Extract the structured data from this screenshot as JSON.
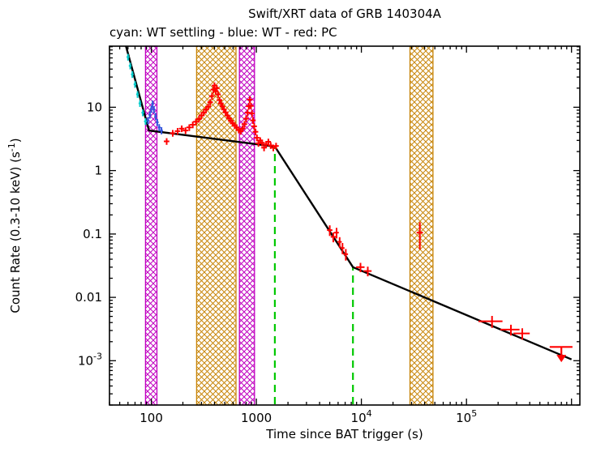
{
  "chart_data": {
    "type": "scatter",
    "title": "Swift/XRT data of GRB 140304A",
    "subtitle": "cyan: WT settling - blue: WT - red: PC",
    "xlabel": "Time since BAT trigger (s)",
    "ylabel_parts": [
      {
        "t": "Count Rate (0.3-10 keV) (s"
      },
      {
        "t": "-1",
        "sup": true
      },
      {
        "t": ")"
      }
    ],
    "xscale": "log",
    "yscale": "log",
    "xlim": [
      40,
      1200000
    ],
    "ylim": [
      0.0002,
      92
    ],
    "grid": false,
    "legend_position": "none",
    "x_ticks": [
      {
        "value": 100,
        "base": "100",
        "exp": ""
      },
      {
        "value": 1000,
        "base": "1000",
        "exp": ""
      },
      {
        "value": 10000,
        "base": "10",
        "exp": "4"
      },
      {
        "value": 100000,
        "base": "10",
        "exp": "5"
      }
    ],
    "y_ticks": [
      {
        "value": 10,
        "base": "10",
        "exp": ""
      },
      {
        "value": 1,
        "base": "1",
        "exp": ""
      },
      {
        "value": 0.1,
        "base": "0.1",
        "exp": ""
      },
      {
        "value": 0.01,
        "base": "0.01",
        "exp": ""
      },
      {
        "value": 0.001,
        "base": "10",
        "exp": "-3"
      }
    ],
    "colors": {
      "wt_settling": "#00CCCC",
      "wt": "#3355DD",
      "pc": "#FF0000",
      "fit": "#000000",
      "break_line": "#00C800",
      "band_magenta": "#C000C0",
      "band_orange": "#C8860B"
    },
    "bands": [
      {
        "x0": 88,
        "x1": 113,
        "color_key": "band_magenta"
      },
      {
        "x0": 270,
        "x1": 640,
        "color_key": "band_orange"
      },
      {
        "x0": 690,
        "x1": 960,
        "color_key": "band_magenta"
      },
      {
        "x0": 29000,
        "x1": 48000,
        "color_key": "band_orange"
      }
    ],
    "break_lines": [
      {
        "x": 1500,
        "y_top": 2.4
      },
      {
        "x": 8300,
        "y_top": 0.03
      }
    ],
    "fit_line": [
      [
        55,
        120
      ],
      [
        95,
        4.3
      ],
      [
        1500,
        2.4
      ],
      [
        8300,
        0.03
      ],
      [
        1000000,
        0.00105
      ]
    ],
    "series": [
      {
        "name": "WT settling",
        "color_key": "wt_settling",
        "xerr_frac": 0.03,
        "yerr_frac": 0.12,
        "points": [
          [
            60,
            62
          ],
          [
            63,
            45
          ],
          [
            66,
            33
          ],
          [
            70,
            23
          ],
          [
            74,
            16
          ],
          [
            78,
            11.5
          ],
          [
            83,
            8.2
          ],
          [
            88,
            6.0
          ]
        ]
      },
      {
        "name": "WT",
        "color_key": "wt",
        "xerr_frac": 0.03,
        "yerr_frac": 0.13,
        "points": [
          [
            93,
            6.2
          ],
          [
            97,
            7.6
          ],
          [
            100,
            9.4
          ],
          [
            103,
            11.3
          ],
          [
            106,
            9.2
          ],
          [
            110,
            7.2
          ],
          [
            114,
            5.8
          ],
          [
            119,
            4.8
          ],
          [
            125,
            4.3
          ]
        ]
      },
      {
        "name": "PC",
        "color_key": "pc",
        "xerr_frac": 0.06,
        "yerr_frac": 0.12,
        "points": [
          [
            140,
            2.9
          ],
          [
            160,
            3.9
          ],
          [
            178,
            4.2
          ],
          [
            195,
            4.6
          ],
          [
            212,
            4.3
          ],
          [
            230,
            4.8
          ],
          [
            248,
            5.3
          ],
          [
            266,
            5.9
          ],
          [
            284,
            6.5
          ],
          [
            300,
            7.4
          ],
          [
            316,
            8.2
          ],
          [
            332,
            9.2
          ],
          [
            348,
            10.2
          ],
          [
            364,
            12
          ],
          [
            378,
            15
          ],
          [
            390,
            19
          ],
          [
            400,
            22
          ],
          [
            410,
            18
          ],
          [
            420,
            20
          ],
          [
            432,
            16
          ],
          [
            446,
            13
          ],
          [
            460,
            11.5
          ],
          [
            476,
            10.3
          ],
          [
            492,
            9.2
          ],
          [
            510,
            8.3
          ],
          [
            530,
            7.4
          ],
          [
            550,
            6.7
          ],
          [
            573,
            6.1
          ],
          [
            597,
            5.6
          ],
          [
            622,
            5.2
          ],
          [
            650,
            4.8
          ],
          [
            680,
            4.4
          ],
          [
            710,
            4.2
          ],
          [
            740,
            4.6
          ],
          [
            770,
            5.4
          ],
          [
            800,
            6.6
          ],
          [
            825,
            8.2
          ],
          [
            848,
            10.4
          ],
          [
            868,
            13.2
          ],
          [
            888,
            10.5
          ],
          [
            908,
            8.0
          ],
          [
            930,
            6.2
          ],
          [
            955,
            5.0
          ],
          [
            982,
            4.1
          ],
          [
            1012,
            3.3
          ],
          [
            1048,
            2.7
          ],
          [
            1090,
            3.0
          ],
          [
            1135,
            2.75
          ],
          [
            1185,
            2.3
          ],
          [
            1240,
            2.6
          ],
          [
            1300,
            2.85
          ],
          [
            1370,
            2.5
          ],
          [
            1450,
            2.3
          ],
          [
            1540,
            2.45
          ],
          [
            5000,
            0.115,
            300,
            0.022
          ],
          [
            5400,
            0.09,
            300,
            0.016
          ],
          [
            5800,
            0.105,
            300,
            0.02
          ],
          [
            6200,
            0.075,
            300,
            0.014
          ],
          [
            6600,
            0.06,
            300,
            0.012
          ],
          [
            7100,
            0.048,
            350,
            0.01
          ],
          [
            9800,
            0.03,
            900,
            0.005
          ],
          [
            11500,
            0.026,
            1000,
            0.0045
          ],
          [
            36000,
            0.105,
            2500,
            0.048
          ],
          [
            175000,
            0.0042,
            45000,
            0.0009
          ],
          [
            265000,
            0.0031,
            55000,
            0.0006
          ],
          [
            340000,
            0.0027,
            60000,
            0.00055
          ]
        ]
      }
    ],
    "upper_limit": {
      "x": 800000,
      "x0": 620000,
      "x1": 1020000,
      "y": 0.00165,
      "y_to": 0.00095
    }
  }
}
